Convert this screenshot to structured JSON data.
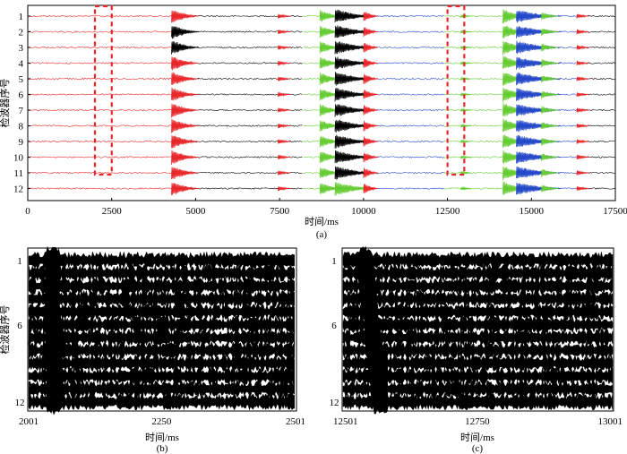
{
  "colors": {
    "red": "#e8272a",
    "black": "#000000",
    "green": "#66cc33",
    "blue": "#2448c8",
    "frame": "#000000",
    "highlight": "#e8272a"
  },
  "chart_data": [
    {
      "type": "line",
      "panel": "(a)",
      "xlabel": "时间/ms",
      "ylabel": "检波器序号",
      "xlim": [
        0,
        17500
      ],
      "xticks": [
        0,
        2500,
        5000,
        7500,
        10000,
        12500,
        15000,
        17500
      ],
      "ytick_labels": [
        "1",
        "2",
        "3",
        "4",
        "5",
        "6",
        "7",
        "8",
        "9",
        "10",
        "11",
        "12"
      ],
      "channels": 12,
      "segments": [
        {
          "start": 0,
          "end": 4300,
          "color": "red"
        },
        {
          "start": 4300,
          "end": 8200,
          "color": "black"
        },
        {
          "start": 8200,
          "end": 8800,
          "color": "green"
        },
        {
          "start": 8800,
          "end": 9900,
          "color": "black"
        },
        {
          "start": 9900,
          "end": 12400,
          "color": "blue"
        },
        {
          "start": 12400,
          "end": 14200,
          "color": "green"
        },
        {
          "start": 14200,
          "end": 16500,
          "color": "blue"
        },
        {
          "start": 16500,
          "end": 17500,
          "color": "black"
        }
      ],
      "events": [
        {
          "t": 4280,
          "amp": 1.0,
          "decay": 260,
          "color": "red",
          "channel_colors": [
            "red",
            "black",
            "black",
            "red",
            "red",
            "red",
            "red",
            "red",
            "red",
            "red",
            "red",
            "red"
          ]
        },
        {
          "t": 7450,
          "amp": 0.35,
          "decay": 120,
          "color": "red"
        },
        {
          "t": 8700,
          "amp": 0.85,
          "decay": 220,
          "color": "green",
          "channel_colors": [
            "green",
            "green",
            "green",
            "green",
            "green",
            "green",
            "green",
            "green",
            "green",
            "green",
            "green",
            "green"
          ]
        },
        {
          "t": 9150,
          "amp": 0.95,
          "decay": 380,
          "color": "black",
          "channel_colors": [
            "black",
            "black",
            "black",
            "black",
            "black",
            "black",
            "black",
            "black",
            "black",
            "black",
            "black",
            "green"
          ]
        },
        {
          "t": 10000,
          "amp": 0.75,
          "decay": 140,
          "color": "red"
        },
        {
          "t": 12900,
          "amp": 0.25,
          "decay": 100,
          "color": "green"
        },
        {
          "t": 14150,
          "amp": 1.0,
          "decay": 250,
          "color": "green"
        },
        {
          "t": 14550,
          "amp": 0.9,
          "decay": 420,
          "color": "blue"
        },
        {
          "t": 15300,
          "amp": 0.55,
          "decay": 160,
          "color": "green"
        },
        {
          "t": 16350,
          "amp": 0.35,
          "decay": 120,
          "color": "red"
        }
      ],
      "highlight_windows": [
        {
          "start": 2001,
          "end": 2501
        },
        {
          "start": 12501,
          "end": 13001
        }
      ]
    },
    {
      "type": "line",
      "panel": "(b)",
      "xlabel": "时间/ms",
      "ylabel": "检波器序号",
      "xlim": [
        2001,
        2501
      ],
      "xticks": [
        2001,
        2250,
        2501
      ],
      "ytick_labels": {
        "1": "1",
        "6": "6",
        "12": "12"
      },
      "channels": 12,
      "color": "black"
    },
    {
      "type": "line",
      "panel": "(c)",
      "xlabel": "时间/ms",
      "ylabel": "",
      "xlim": [
        12501,
        13001
      ],
      "xticks": [
        12501,
        12750,
        13001
      ],
      "ytick_labels": {
        "1": "1",
        "6": "6",
        "12": "12"
      },
      "channels": 12,
      "color": "black"
    }
  ]
}
